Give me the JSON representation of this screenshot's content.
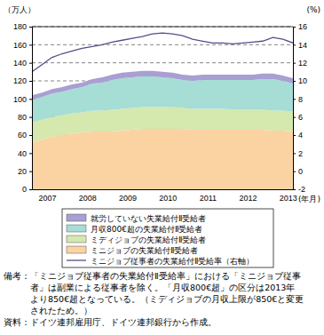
{
  "chart_data": {
    "type": "area",
    "stacked": true,
    "grid": true,
    "legend": "bottom",
    "y_label": "（万人）",
    "y2_label": "(%)",
    "x_label": "(年月)",
    "categories": [
      null,
      "2007",
      null,
      null,
      null,
      "2008",
      null,
      null,
      null,
      "2009",
      null,
      null,
      null,
      "2010",
      null,
      null,
      null,
      "2011",
      null,
      null,
      null,
      "2012",
      null,
      null,
      null,
      "2013",
      null
    ],
    "ylim": [
      0,
      180
    ],
    "yticks": [
      0,
      20,
      40,
      60,
      80,
      100,
      120,
      140,
      160,
      180
    ],
    "y2lim": [
      -2,
      16
    ],
    "y2ticks": [
      -2,
      0,
      2,
      4,
      6,
      8,
      10,
      12,
      14,
      16
    ],
    "series": [
      {
        "name": "ミニジョブの失業給付Ⅱ受給者",
        "type": "area",
        "color": "#fbd3a2",
        "values": [
          52,
          55,
          58,
          60,
          62,
          63,
          64,
          64,
          64,
          65,
          66,
          67,
          67,
          67,
          67,
          67,
          66,
          66,
          66,
          66,
          66,
          66,
          66,
          66,
          65,
          65,
          64
        ]
      },
      {
        "name": "ミディジョブの失業給付Ⅱ受給者",
        "type": "area",
        "color": "#d5e8ae",
        "values": [
          22,
          22,
          22,
          22,
          22,
          22,
          23,
          23,
          24,
          24,
          24,
          24,
          24,
          24,
          24,
          23,
          23,
          23,
          23,
          23,
          22,
          22,
          22,
          22,
          22,
          22,
          22
        ]
      },
      {
        "name": "月収800€超の失業給付Ⅱ受給者",
        "type": "area",
        "color": "#a6ddd5",
        "values": [
          25,
          25,
          26,
          26,
          27,
          28,
          30,
          31,
          33,
          34,
          34,
          34,
          34,
          33,
          32,
          31,
          31,
          32,
          32,
          32,
          33,
          33,
          33,
          34,
          35,
          33,
          31
        ]
      },
      {
        "name": "就労していない失業給付Ⅱ受給者",
        "type": "area",
        "color": "#a99fd2",
        "values": [
          5,
          5,
          5,
          5,
          5,
          5,
          5,
          6,
          6,
          6,
          6,
          6,
          6,
          6,
          6,
          6,
          6,
          6,
          6,
          6,
          6,
          6,
          6,
          6,
          6,
          6,
          6
        ]
      },
      {
        "name": "ミニジョブ従事者の失業給付Ⅱ受給率（右軸）",
        "type": "line",
        "axis": "y2",
        "color": "#5b4a8c",
        "values": [
          11.0,
          11.8,
          12.6,
          13.0,
          13.3,
          13.6,
          13.8,
          14.0,
          14.3,
          14.5,
          14.7,
          14.9,
          15.2,
          15.3,
          15.2,
          15.0,
          14.6,
          14.4,
          14.2,
          14.2,
          14.1,
          14.2,
          14.3,
          14.4,
          14.8,
          14.6,
          14.2
        ]
      }
    ],
    "annotations": [
      "備考：「ミニジョブ従事者の失業給付Ⅱ受給率」における「ミニジョブ従事",
      "者」は副業による従事者を除く。「月収800€超」の区分は2013年",
      "より850€超となっている。（ミディジョブの月収上限が850€と変更",
      "されたため。）",
      "資料：ドイツ連邦雇用庁、ドイツ連邦銀行から作成。"
    ]
  }
}
